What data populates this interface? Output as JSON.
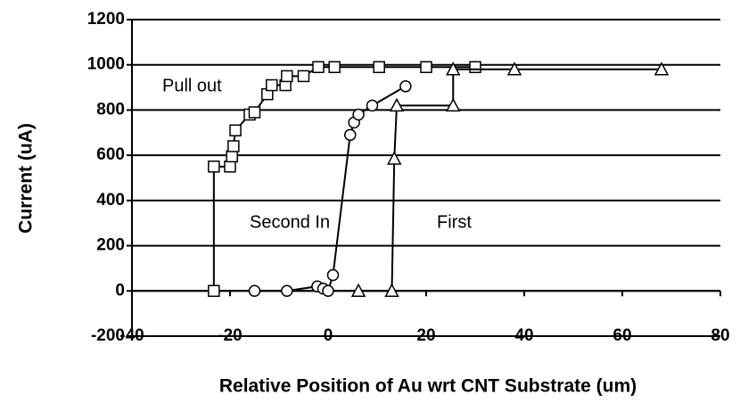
{
  "chart_data": {
    "type": "line",
    "xlabel": "Relative Position of Au wrt CNT Substrate (um)",
    "ylabel": "Current (uA)",
    "xlim": [
      -40,
      80
    ],
    "xticks": [
      -40,
      -20,
      0,
      20,
      40,
      60,
      80
    ],
    "ylim": [
      -200,
      1200
    ],
    "yticks": [
      -200,
      0,
      200,
      400,
      600,
      800,
      1000,
      1200
    ],
    "grid": true,
    "series": [
      {
        "name": "Pull out",
        "color": "#000000",
        "marker": "square",
        "x": [
          -23.3,
          -23.3,
          -20,
          -19.6,
          -19.3,
          -18.9,
          -16,
          -15,
          -12.4,
          -11.5,
          -8.7,
          -8.4,
          -5,
          -2,
          1.3,
          10.4,
          20,
          30
        ],
        "values": [
          0,
          550,
          550,
          595,
          640,
          710,
          780,
          790,
          870,
          910,
          910,
          950,
          950,
          990,
          990,
          990,
          990,
          990
        ]
      },
      {
        "name": "Second In",
        "color": "#000000",
        "marker": "circle",
        "x": [
          -15,
          -8.4,
          -2.2,
          -1,
          0,
          1,
          4.5,
          5.3,
          6.2,
          9,
          15.8
        ],
        "values": [
          0,
          0,
          20,
          10,
          0,
          70,
          690,
          745,
          780,
          820,
          905
        ]
      },
      {
        "name": "First",
        "color": "#000000",
        "marker": "triangle",
        "x": [
          6.2,
          13,
          13.5,
          14,
          25.5,
          25.5,
          38,
          68
        ],
        "values": [
          0,
          0,
          585,
          820,
          820,
          980,
          980,
          980
        ]
      }
    ]
  }
}
